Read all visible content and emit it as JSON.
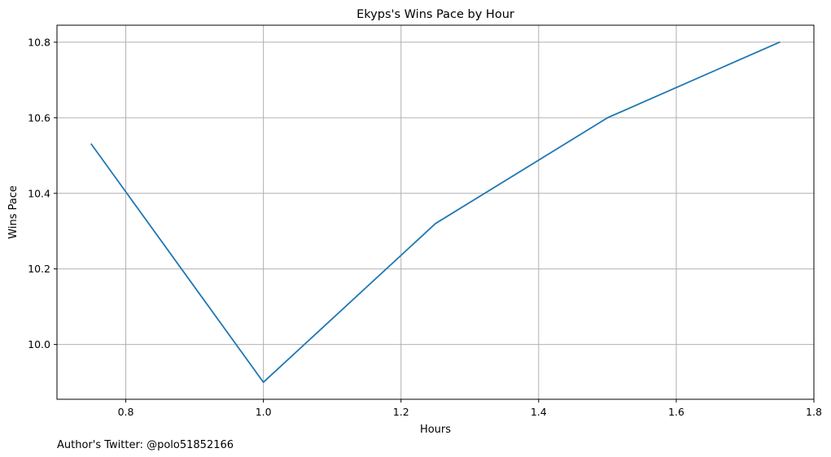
{
  "chart_data": {
    "type": "line",
    "title": "Ekyps's Wins Pace by Hour",
    "xlabel": "Hours",
    "ylabel": "Wins Pace",
    "x": [
      0.75,
      1.0,
      1.25,
      1.5,
      1.75
    ],
    "series": [
      {
        "values": [
          10.53,
          9.9,
          10.32,
          10.6,
          10.8
        ],
        "color": "#1f77b4"
      }
    ],
    "xlim": [
      0.7,
      1.8
    ],
    "ylim": [
      9.855,
      10.845
    ],
    "x_ticks": [
      0.8,
      1.0,
      1.2,
      1.4,
      1.6,
      1.8
    ],
    "x_tick_labels": [
      "0.8",
      "1.0",
      "1.2",
      "1.4",
      "1.6",
      "1.8"
    ],
    "y_ticks": [
      10.0,
      10.2,
      10.4,
      10.6,
      10.8
    ],
    "y_tick_labels": [
      "10.0",
      "10.2",
      "10.4",
      "10.6",
      "10.8"
    ],
    "grid": true,
    "grid_color": "#b0b0b0"
  },
  "footer": {
    "text": "Author's Twitter: @polo51852166"
  }
}
